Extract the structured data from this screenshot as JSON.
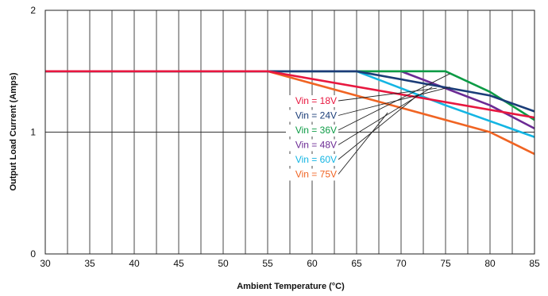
{
  "chart_data": {
    "type": "line",
    "xlabel": "Ambient Temperature (°C)",
    "ylabel": "Output Load Current (Amps)",
    "xlim": [
      30,
      85
    ],
    "ylim": [
      0,
      2
    ],
    "x_ticks": [
      "30",
      "35",
      "40",
      "45",
      "50",
      "55",
      "60",
      "65",
      "70",
      "75",
      "80",
      "85"
    ],
    "y_ticks": [
      "0",
      "1",
      "2"
    ],
    "grid": true,
    "legend_placement": "center-right, inline labels with leader lines",
    "series": [
      {
        "name": "Vin = 18V",
        "color": "#e8173f",
        "points": [
          [
            30,
            1.5
          ],
          [
            55,
            1.5
          ],
          [
            85,
            1.12
          ]
        ]
      },
      {
        "name": "Vin = 24V",
        "color": "#1b3d78",
        "points": [
          [
            30,
            1.5
          ],
          [
            65,
            1.5
          ],
          [
            80,
            1.3
          ],
          [
            85,
            1.17
          ]
        ]
      },
      {
        "name": "Vin = 36V",
        "color": "#0c9b45",
        "points": [
          [
            30,
            1.5
          ],
          [
            75,
            1.5
          ],
          [
            80,
            1.33
          ],
          [
            85,
            1.1
          ]
        ]
      },
      {
        "name": "Vin = 48V",
        "color": "#6b2a94",
        "points": [
          [
            30,
            1.5
          ],
          [
            70,
            1.5
          ],
          [
            80,
            1.22
          ],
          [
            85,
            1.03
          ]
        ]
      },
      {
        "name": "Vin = 60V",
        "color": "#13b5e3",
        "points": [
          [
            30,
            1.5
          ],
          [
            65,
            1.5
          ],
          [
            75,
            1.22
          ],
          [
            85,
            0.96
          ]
        ]
      },
      {
        "name": "Vin = 75V",
        "color": "#f06423",
        "points": [
          [
            30,
            1.5
          ],
          [
            55,
            1.5
          ],
          [
            80,
            1.0
          ],
          [
            85,
            0.82
          ]
        ]
      }
    ],
    "leader_targets": [
      [
        74,
        1.36
      ],
      [
        75.5,
        1.37
      ],
      [
        75.5,
        1.48
      ],
      [
        73.5,
        1.37
      ],
      [
        72,
        1.31
      ],
      [
        68.5,
        1.16
      ]
    ]
  }
}
